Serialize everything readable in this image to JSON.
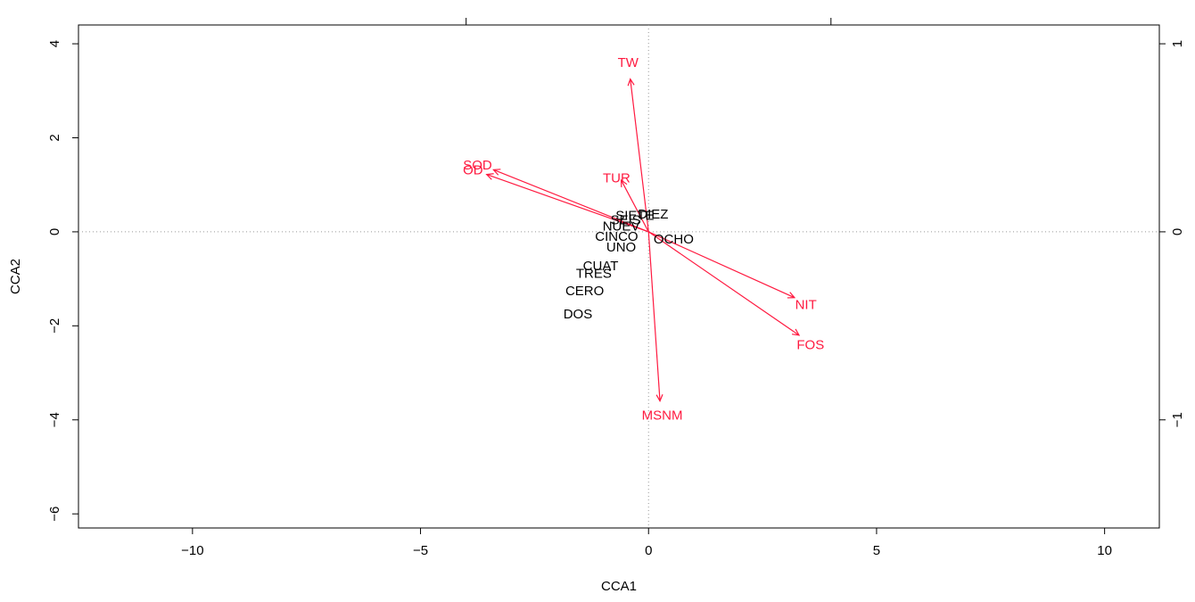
{
  "chart_data": {
    "type": "scatter",
    "subtype": "cca-biplot",
    "title": "",
    "xlabel": "CCA1",
    "ylabel": "CCA2",
    "xlim": [
      -12.5,
      11.2
    ],
    "ylim": [
      -6.3,
      4.4
    ],
    "x_ticks": [
      -10,
      -5,
      0,
      5,
      10
    ],
    "x_tick_labels": [
      "−10",
      "−5",
      "0",
      "5",
      "10"
    ],
    "y_ticks": [
      -6,
      -4,
      -2,
      0,
      2,
      4
    ],
    "y_tick_labels": [
      "−6",
      "−4",
      "−2",
      "0",
      "2",
      "4"
    ],
    "top_ticks": [
      -4,
      4
    ],
    "right_ticks": [
      -1,
      0,
      1
    ],
    "right_tick_labels": [
      "−1",
      "0",
      "1"
    ],
    "right_axis_scale": 4,
    "grid": false,
    "zero_lines": true,
    "colors": {
      "sites": "#000000",
      "variables": "#ff1a40",
      "zero_lines": "#999999"
    },
    "sites": [
      {
        "label": "SIETE",
        "x": -0.3,
        "y": 0.35
      },
      {
        "label": "DIEZ",
        "x": 0.1,
        "y": 0.38
      },
      {
        "label": "SEIS",
        "x": -0.5,
        "y": 0.25
      },
      {
        "label": "NUEV",
        "x": -0.6,
        "y": 0.12
      },
      {
        "label": "CINCO",
        "x": -0.7,
        "y": -0.1
      },
      {
        "label": "OCHO",
        "x": 0.55,
        "y": -0.15
      },
      {
        "label": "UNO",
        "x": -0.6,
        "y": -0.32
      },
      {
        "label": "CUAT",
        "x": -1.05,
        "y": -0.72
      },
      {
        "label": "TRES",
        "x": -1.2,
        "y": -0.88
      },
      {
        "label": "CERO",
        "x": -1.4,
        "y": -1.25
      },
      {
        "label": "DOS",
        "x": -1.55,
        "y": -1.75
      }
    ],
    "variables": [
      {
        "label": "TW",
        "x": -0.4,
        "y": 3.25,
        "label_x": -0.45,
        "label_y": 3.6
      },
      {
        "label": "SOD",
        "x": -3.4,
        "y": 1.32,
        "label_x": -3.75,
        "label_y": 1.42
      },
      {
        "label": "OD",
        "x": -3.55,
        "y": 1.22,
        "label_x": -3.85,
        "label_y": 1.32
      },
      {
        "label": "TUR",
        "x": -0.6,
        "y": 1.1,
        "label_x": -0.7,
        "label_y": 1.15
      },
      {
        "label": "NIT",
        "x": 3.2,
        "y": -1.4,
        "label_x": 3.45,
        "label_y": -1.55
      },
      {
        "label": "FOS",
        "x": 3.3,
        "y": -2.2,
        "label_x": 3.55,
        "label_y": -2.4
      },
      {
        "label": "MSNM",
        "x": 0.25,
        "y": -3.6,
        "label_x": 0.3,
        "label_y": -3.9
      }
    ]
  }
}
